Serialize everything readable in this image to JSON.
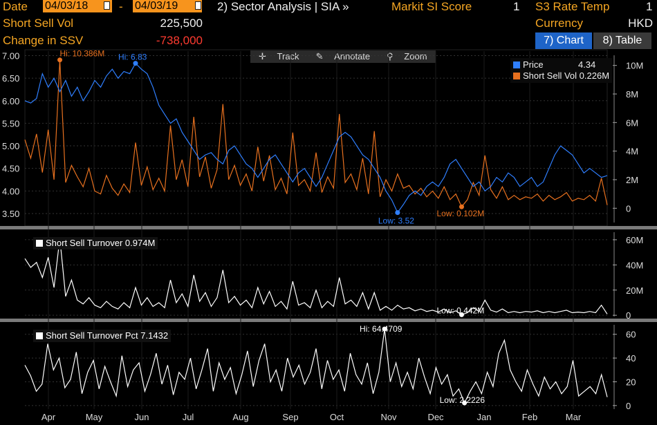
{
  "header": {
    "date_label": "Date",
    "start_date": "04/03/18",
    "date_sep": "-",
    "end_date": "04/03/19",
    "sector_link": "2) Sector Analysis | SIA »",
    "markit_label": "Markit SI Score",
    "markit_value": "1",
    "s3_label": "S3 Rate Temp",
    "s3_value": "1",
    "ssv_label": "Short Sell Vol",
    "ssv_value": "225,500",
    "currency_label": "Currency",
    "currency_value": "HKD",
    "chg_label": "Change in SSV",
    "chg_value": "-738,000"
  },
  "views": {
    "chart_label": "7) Chart",
    "table_label": "8) Table"
  },
  "toolbar": {
    "track": "Track",
    "annotate": "Annotate",
    "zoom": "Zoom"
  },
  "colors": {
    "price": "#2f7fff",
    "volume": "#e8711f",
    "line": "#ffffff",
    "grid": "#333333"
  },
  "chart_data": [
    {
      "type": "line",
      "series": [
        {
          "name": "Price",
          "value": "4.34",
          "color": "#2f7fff",
          "axis": "left",
          "values": [
            6.0,
            5.95,
            6.05,
            6.6,
            6.3,
            6.5,
            6.2,
            6.45,
            6.1,
            6.3,
            6.0,
            6.2,
            6.45,
            6.3,
            6.55,
            6.7,
            6.5,
            6.65,
            6.6,
            6.83,
            6.7,
            6.6,
            6.3,
            5.9,
            5.7,
            5.5,
            5.6,
            5.3,
            5.1,
            4.9,
            4.7,
            4.8,
            4.85,
            4.7,
            4.6,
            4.9,
            5.0,
            4.8,
            4.6,
            4.5,
            4.3,
            4.5,
            4.7,
            4.8,
            4.6,
            4.4,
            4.2,
            4.4,
            4.5,
            4.3,
            4.1,
            4.3,
            4.6,
            4.9,
            5.2,
            5.3,
            5.2,
            5.0,
            4.8,
            4.7,
            4.5,
            4.3,
            4.0,
            3.8,
            3.52,
            3.7,
            3.9,
            4.0,
            3.9,
            4.1,
            4.2,
            4.1,
            4.3,
            4.6,
            4.7,
            4.5,
            4.3,
            4.1,
            4.2,
            4.0,
            4.1,
            4.3,
            4.2,
            4.4,
            4.3,
            4.1,
            4.2,
            4.3,
            4.1,
            4.2,
            4.5,
            4.8,
            5.0,
            4.9,
            4.8,
            4.6,
            4.4,
            4.5,
            4.4,
            4.3,
            4.34
          ]
        },
        {
          "name": "Short Sell Vol",
          "value": "0.226M",
          "color": "#e8711f",
          "axis": "right",
          "values": [
            4.8,
            3.5,
            5.2,
            2.5,
            5.5,
            2.0,
            10.386,
            1.8,
            3.0,
            2.2,
            1.5,
            2.8,
            1.2,
            1.0,
            2.3,
            1.4,
            0.9,
            1.7,
            1.1,
            4.6,
            1.6,
            2.9,
            1.3,
            2.1,
            1.2,
            5.8,
            2.0,
            3.4,
            1.5,
            6.4,
            2.2,
            3.6,
            1.4,
            2.7,
            7.3,
            2.0,
            3.0,
            1.6,
            2.4,
            1.2,
            4.3,
            1.9,
            3.7,
            1.3,
            2.1,
            1.0,
            5.3,
            1.6,
            2.0,
            1.2,
            3.9,
            1.1,
            2.2,
            1.4,
            6.6,
            1.8,
            2.4,
            1.3,
            3.5,
            1.0,
            5.4,
            0.8,
            2.0,
            1.2,
            2.4,
            1.4,
            1.6,
            1.0,
            1.4,
            0.8,
            1.2,
            0.7,
            1.5,
            0.6,
            1.0,
            0.102,
            0.6,
            1.8,
            0.9,
            3.7,
            1.3,
            0.7,
            1.5,
            0.6,
            0.9,
            0.6,
            0.8,
            0.7,
            1.0,
            0.5,
            0.9,
            0.6,
            0.8,
            1.1,
            0.5,
            0.7,
            0.6,
            0.9,
            0.5,
            2.1,
            0.226
          ]
        }
      ],
      "ylim": [
        3.3,
        7.1
      ],
      "yticks": [
        "7.00",
        "6.50",
        "6.00",
        "5.50",
        "5.00",
        "4.50",
        "4.00",
        "3.50"
      ],
      "y2lim": [
        -1,
        11
      ],
      "y2ticks": [
        "10M",
        "8M",
        "6M",
        "4M",
        "2M",
        "0"
      ],
      "annotations": [
        {
          "text": "Hi: 10.386M"
        },
        {
          "text": "Hi: 6.83"
        },
        {
          "text": "Low: 3.52"
        },
        {
          "text": "Low: 0.102M"
        }
      ]
    },
    {
      "type": "line",
      "series": [
        {
          "name": "Short Sell Turnover",
          "value": "0.974M",
          "color": "#ffffff",
          "values": [
            45,
            38,
            42,
            30,
            46,
            22,
            61.2,
            15,
            28,
            12,
            9,
            14,
            8,
            6,
            11,
            7,
            5,
            10,
            6,
            22,
            8,
            14,
            7,
            10,
            6,
            28,
            10,
            17,
            7,
            32,
            11,
            18,
            7,
            14,
            36,
            10,
            15,
            8,
            12,
            6,
            22,
            9,
            19,
            7,
            11,
            5,
            27,
            8,
            10,
            6,
            20,
            6,
            11,
            7,
            30,
            9,
            12,
            7,
            18,
            5,
            18,
            4,
            7,
            4,
            8,
            5,
            6,
            3.5,
            5,
            3,
            4,
            2.5,
            5,
            2,
            3.5,
            0.442,
            2,
            6,
            3,
            12,
            4,
            2.5,
            5,
            2,
            3,
            2,
            3,
            2.5,
            3.5,
            2,
            3,
            2,
            3,
            4,
            2,
            2.5,
            2,
            3,
            2,
            8,
            0.974
          ]
        }
      ],
      "y2ticks": [
        "60M",
        "40M",
        "20M",
        "0"
      ],
      "y2lim": [
        -1,
        66
      ],
      "annotations": [
        {
          "text": "Low: 0.442M"
        }
      ]
    },
    {
      "type": "line",
      "series": [
        {
          "name": "Short Sell Turnover Pct",
          "value": "7.1432",
          "color": "#ffffff",
          "values": [
            34,
            25,
            12,
            18,
            52,
            30,
            40,
            15,
            22,
            45,
            10,
            28,
            38,
            14,
            33,
            20,
            8,
            42,
            16,
            30,
            36,
            12,
            26,
            44,
            18,
            34,
            9,
            28,
            22,
            40,
            14,
            30,
            48,
            12,
            36,
            22,
            32,
            10,
            26,
            46,
            16,
            38,
            52,
            20,
            30,
            12,
            40,
            24,
            34,
            18,
            28,
            48,
            14,
            38,
            22,
            30,
            12,
            44,
            26,
            18,
            36,
            10,
            28,
            64.4709,
            20,
            36,
            16,
            28,
            14,
            40,
            24,
            10,
            32,
            18,
            26,
            8,
            14,
            2.2226,
            12,
            20,
            10,
            28,
            16,
            44,
            55,
            30,
            20,
            12,
            30,
            18,
            8,
            24,
            14,
            20,
            10,
            16,
            38,
            8,
            12,
            16,
            10,
            26,
            7.14
          ]
        }
      ],
      "y2ticks": [
        "60",
        "40",
        "20",
        "0"
      ],
      "y2lim": [
        -3,
        68
      ],
      "annotations": [
        {
          "text": "Hi: 64.4709"
        },
        {
          "text": "Low: 2.2226"
        }
      ]
    }
  ],
  "xaxis": {
    "months": [
      "Apr",
      "May",
      "Jun",
      "Jul",
      "Aug",
      "Sep",
      "Oct",
      "Nov",
      "Dec",
      "Jan",
      "Feb",
      "Mar"
    ]
  }
}
